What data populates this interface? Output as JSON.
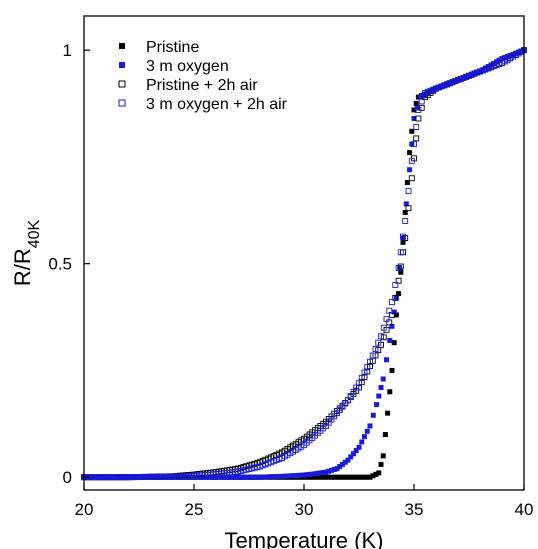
{
  "chart_data": {
    "type": "scatter",
    "title": "",
    "xlabel": "Temperature (K)",
    "ylabel": {
      "main": "R/R",
      "subscript": "40K"
    },
    "xlim": [
      20,
      40
    ],
    "ylim": [
      -0.03,
      1.08
    ],
    "xticks": [
      20,
      25,
      30,
      35,
      40
    ],
    "yticks": [
      0,
      0.5,
      1
    ],
    "xtick_labels": [
      "20",
      "25",
      "30",
      "35",
      "40"
    ],
    "ytick_labels": [
      "0",
      "0.5",
      "1"
    ],
    "grid": false,
    "legend_position": "top-left",
    "series": [
      {
        "name": "Pristine",
        "color": "#000000",
        "marker": "filled-square",
        "x": [
          20,
          22,
          24,
          26,
          28,
          30,
          31,
          32,
          33,
          33.4,
          33.6,
          33.8,
          34.0,
          34.2,
          34.4,
          34.6,
          34.8,
          35.0,
          35.2,
          35.6,
          36,
          37,
          38,
          39,
          40
        ],
        "y": [
          0,
          0,
          0,
          0,
          0,
          0,
          0,
          0,
          0,
          0.01,
          0.05,
          0.15,
          0.25,
          0.38,
          0.48,
          0.62,
          0.76,
          0.86,
          0.89,
          0.9,
          0.91,
          0.93,
          0.95,
          0.98,
          1.0
        ]
      },
      {
        "name": "3 m oxygen",
        "color": "#1a1adb",
        "marker": "filled-square",
        "x": [
          20,
          22,
          24,
          26,
          28,
          29,
          30,
          30.5,
          31,
          31.5,
          32,
          32.5,
          33,
          33.3,
          33.6,
          33.9,
          34.2,
          34.5,
          34.8,
          35.0,
          35.3,
          35.6,
          36,
          37,
          38,
          39,
          40
        ],
        "y": [
          0,
          0,
          0,
          0,
          0,
          0.002,
          0.005,
          0.008,
          0.012,
          0.02,
          0.04,
          0.07,
          0.12,
          0.17,
          0.23,
          0.32,
          0.42,
          0.56,
          0.72,
          0.84,
          0.89,
          0.9,
          0.91,
          0.93,
          0.95,
          0.98,
          1.0
        ]
      },
      {
        "name": "Pristine + 2h air",
        "color": "#000000",
        "marker": "open-square",
        "x": [
          20,
          22,
          24,
          25,
          26,
          27,
          28,
          29,
          30,
          31,
          31.5,
          32,
          32.5,
          33,
          33.5,
          34,
          34.3,
          34.6,
          34.9,
          35.2,
          35.5,
          36,
          37,
          38,
          39,
          40
        ],
        "y": [
          0,
          0,
          0.002,
          0.006,
          0.012,
          0.02,
          0.035,
          0.058,
          0.09,
          0.13,
          0.155,
          0.18,
          0.21,
          0.26,
          0.31,
          0.38,
          0.46,
          0.56,
          0.7,
          0.84,
          0.89,
          0.91,
          0.93,
          0.95,
          0.97,
          1.0
        ]
      },
      {
        "name": "3 m oxygen + 2h air",
        "color": "#1a1adb",
        "marker": "open-square",
        "x": [
          20,
          22,
          24,
          25,
          26,
          27,
          28,
          29,
          30,
          31,
          31.5,
          32,
          32.5,
          33,
          33.5,
          34,
          34.3,
          34.6,
          34.9,
          35.2,
          35.5,
          36,
          37,
          38,
          39,
          40
        ],
        "y": [
          0,
          0,
          0.001,
          0.003,
          0.007,
          0.013,
          0.025,
          0.045,
          0.075,
          0.12,
          0.15,
          0.18,
          0.22,
          0.27,
          0.33,
          0.41,
          0.49,
          0.6,
          0.74,
          0.86,
          0.9,
          0.91,
          0.93,
          0.95,
          0.97,
          1.0
        ]
      }
    ]
  }
}
